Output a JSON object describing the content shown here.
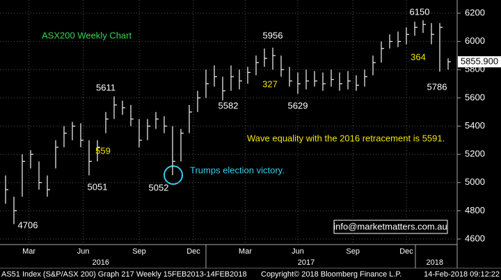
{
  "chart_data": {
    "type": "ohlc",
    "title": "ASX200 Weekly Chart",
    "title_color": "#39d353",
    "color": "#e6e6e6",
    "high": [
      5050,
      4900,
      5200,
      5230,
      5150,
      5050,
      5300,
      5400,
      5430,
      5420,
      5300,
      5300,
      5500,
      5611,
      5580,
      5550,
      5450,
      5450,
      5500,
      5470,
      5400,
      5380,
      5550,
      5650,
      5800,
      5830,
      5750,
      5830,
      5800,
      5820,
      5900,
      5950,
      5956,
      5900,
      5820,
      5780,
      5800,
      5790,
      5780,
      5800,
      5780,
      5790,
      5760,
      5800,
      5900,
      6000,
      6050,
      6070,
      6100,
      6140,
      6150,
      6130,
      6130,
      5880
    ],
    "low": [
      4850,
      4706,
      4900,
      5100,
      4950,
      4900,
      5100,
      5250,
      5300,
      5250,
      5051,
      5150,
      5350,
      5450,
      5480,
      5400,
      5250,
      5300,
      5380,
      5350,
      5052,
      5150,
      5350,
      5500,
      5600,
      5680,
      5582,
      5650,
      5660,
      5700,
      5760,
      5820,
      5800,
      5750,
      5680,
      5629,
      5660,
      5680,
      5650,
      5680,
      5650,
      5660,
      5650,
      5680,
      5760,
      5850,
      5950,
      5960,
      5980,
      6040,
      6060,
      5980,
      5786,
      5800
    ],
    "close": [
      4950,
      4800,
      5150,
      5200,
      5000,
      4950,
      5250,
      5350,
      5400,
      5300,
      5150,
      5250,
      5450,
      5550,
      5530,
      5450,
      5300,
      5400,
      5450,
      5400,
      5150,
      5350,
      5500,
      5600,
      5700,
      5750,
      5650,
      5750,
      5720,
      5780,
      5850,
      5880,
      5900,
      5800,
      5720,
      5700,
      5720,
      5720,
      5700,
      5730,
      5700,
      5720,
      5690,
      5750,
      5850,
      5950,
      6000,
      6000,
      6050,
      6100,
      6120,
      6050,
      6100,
      5855.9
    ],
    "last_label": "5855.900",
    "ylim": [
      4600,
      6200
    ],
    "yticks": [
      4600,
      4800,
      5000,
      5200,
      5400,
      5600,
      5800,
      6000,
      6200
    ],
    "xticks": [
      {
        "value": 2.8,
        "label": "Mar"
      },
      {
        "value": 9.3,
        "label": "Jun"
      },
      {
        "value": 16,
        "label": "Sep"
      },
      {
        "value": 22.5,
        "label": "Dec"
      },
      {
        "value": 28.7,
        "label": "Mar"
      },
      {
        "value": 35,
        "label": "Jun"
      },
      {
        "value": 41.6,
        "label": "Sep"
      },
      {
        "value": 48,
        "label": "Dec"
      }
    ],
    "years": [
      {
        "value": 11.4,
        "label": "2016"
      },
      {
        "value": 36,
        "label": "2017"
      },
      {
        "value": 51.4,
        "label": "2018"
      }
    ],
    "grid": true,
    "annotations": [
      {
        "text": "5956",
        "color": "#ffffff"
      },
      {
        "text": "6150",
        "color": "#ffffff"
      },
      {
        "text": "364",
        "color": "#f2e600"
      },
      {
        "text": "5786",
        "color": "#ffffff"
      },
      {
        "text": "327",
        "color": "#f2e600"
      },
      {
        "text": "5611",
        "color": "#ffffff"
      },
      {
        "text": "5582",
        "color": "#ffffff"
      },
      {
        "text": "5629",
        "color": "#ffffff"
      },
      {
        "text": "Wave equality with the 2016 retracement is 5591.",
        "color": "#f2e600"
      },
      {
        "text": "559",
        "color": "#f2e600"
      },
      {
        "text": "Trumps election victory.",
        "color": "#35d0e8"
      },
      {
        "text": "5051",
        "color": "#ffffff"
      },
      {
        "text": "5052",
        "color": "#ffffff"
      },
      {
        "text": "4706",
        "color": "#ffffff"
      }
    ],
    "watermark": "info@marketmatters.com.au",
    "footer_left": "AS51 Index (S&P/ASX 200) Graph 217 Weekly 15FEB2013-14FEB2018",
    "footer_mid": "Copyright© 2018 Bloomberg Finance L.P.",
    "footer_right": "14-Feb-2018 09:12:22"
  }
}
